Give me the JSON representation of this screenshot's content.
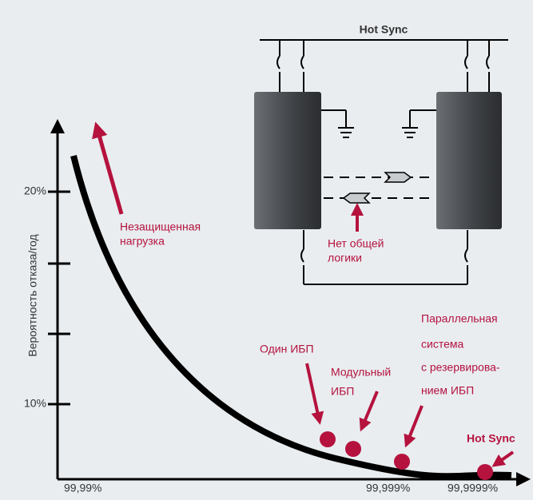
{
  "schematic": {
    "title": "Hot Sync",
    "note": [
      "Нет общей",
      "логики"
    ]
  },
  "axes": {
    "y_label": "Вероятность отказа/год",
    "y_ticks": [
      "20%",
      "10%"
    ],
    "x_ticks": [
      "99,99%",
      "99,999%",
      "99,9999%"
    ]
  },
  "annotations": {
    "unprotected": [
      "Незащищенная",
      "нагрузка"
    ],
    "single": [
      "Один ИБП"
    ],
    "modular": [
      "Модульный",
      "ИБП"
    ],
    "parallel": [
      "Параллельная",
      "система",
      "с резервирова-",
      "нием ИБП"
    ],
    "hot_sync": [
      "Hot Sync"
    ]
  }
}
